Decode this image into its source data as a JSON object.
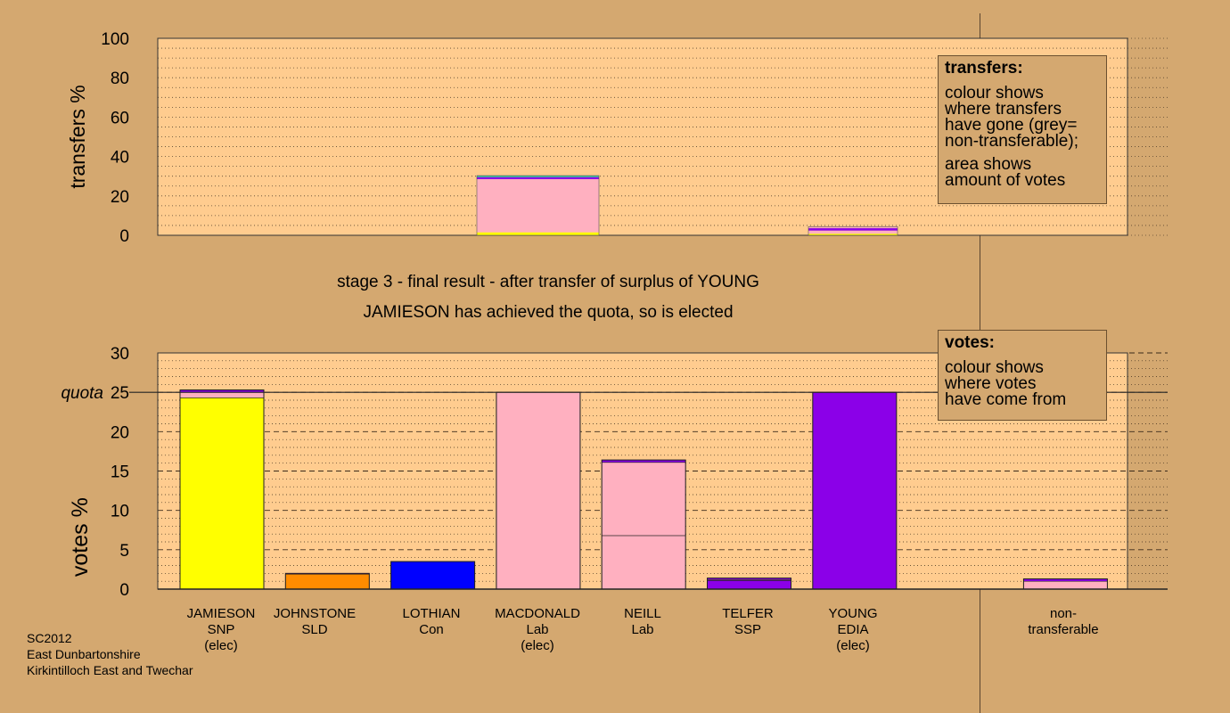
{
  "stage": {
    "line1": "stage 3 - final result - after transfer of surplus of YOUNG",
    "line2": "JAMIESON has achieved the quota, so is elected"
  },
  "colors": {
    "background": "#D4A870",
    "plot_bg": "#FFCC8F",
    "JAMIESON": "#FFFF00",
    "JOHNSTONE": "#FF8C00",
    "LOTHIAN": "#0000FF",
    "MACDONALD": "#FFB0C0",
    "NEILL": "#FFB0C0",
    "TELFER": "#8B00E8",
    "YOUNG": "#8B00E8",
    "non_transferable": "#FFB0C0"
  },
  "legend_transfers": {
    "title": "transfers:",
    "lines": [
      "colour shows",
      "where transfers",
      "have gone (grey=",
      "non-transferable);"
    ],
    "lines2": [
      "area shows",
      "amount of votes"
    ]
  },
  "legend_votes": {
    "title": "votes:",
    "lines": [
      "colour shows",
      "where votes",
      "have come from"
    ]
  },
  "candidates": [
    {
      "name": "JAMIESON",
      "party": "SNP",
      "status": "(elec)"
    },
    {
      "name": "JOHNSTONE",
      "party": "SLD",
      "status": ""
    },
    {
      "name": "LOTHIAN",
      "party": "Con",
      "status": ""
    },
    {
      "name": "MACDONALD",
      "party": "Lab",
      "status": "(elec)"
    },
    {
      "name": "NEILL",
      "party": "Lab",
      "status": ""
    },
    {
      "name": "TELFER",
      "party": "SSP",
      "status": ""
    },
    {
      "name": "YOUNG",
      "party": "EDIA",
      "status": "(elec)"
    },
    {
      "name": "non-",
      "party": "transferable",
      "status": ""
    }
  ],
  "footer": [
    "SC2012",
    "East Dunbartonshire",
    "Kirkintilloch East and Twechar"
  ],
  "chart_data": [
    {
      "type": "bar",
      "title": "",
      "ylabel": "transfers %",
      "ylim": [
        0,
        100
      ],
      "yticks": [
        0,
        20,
        40,
        60,
        80,
        100
      ],
      "bars": [
        {
          "column": 3,
          "segments": [
            {
              "color": "#FFFF00",
              "value": 1.5
            },
            {
              "color": "#FFB0C0",
              "value": 27
            },
            {
              "color": "#8B00E8",
              "value": 1
            },
            {
              "color": "#30C0A0",
              "value": 0.8
            }
          ]
        },
        {
          "column": 6,
          "segments": [
            {
              "color": "#FFFF00",
              "value": 0.8
            },
            {
              "color": "#FFB0C0",
              "value": 1.6
            },
            {
              "color": "#8B00E8",
              "value": 1.2
            },
            {
              "color": "#FFB0C0",
              "value": 0.8
            }
          ]
        }
      ]
    },
    {
      "type": "bar",
      "title": "",
      "ylabel": "votes %",
      "ylim": [
        0,
        30
      ],
      "yticks": [
        0,
        5,
        10,
        15,
        20,
        25,
        30
      ],
      "quota": 25,
      "quota_label": "quota",
      "categories": [
        "JAMIESON",
        "JOHNSTONE",
        "LOTHIAN",
        "MACDONALD",
        "NEILL",
        "TELFER",
        "YOUNG",
        "non-transferable"
      ],
      "bars": [
        {
          "column": 0,
          "segments": [
            {
              "color": "#FFFF00",
              "value": 24.3
            },
            {
              "color": "#FFB0C0",
              "value": 0.7
            },
            {
              "color": "#8B00E8",
              "value": 0.3
            }
          ]
        },
        {
          "column": 1,
          "segments": [
            {
              "color": "#FF8C00",
              "value": 1.9
            },
            {
              "color": "#8B00E8",
              "value": 0.1
            }
          ]
        },
        {
          "column": 2,
          "segments": [
            {
              "color": "#0000FF",
              "value": 3.5
            }
          ]
        },
        {
          "column": 3,
          "segments": [
            {
              "color": "#FFB0C0",
              "value": 25.0
            }
          ]
        },
        {
          "column": 4,
          "segments": [
            {
              "color": "#FFB0C0",
              "value": 6.8
            },
            {
              "color": "#FFB0C0",
              "value": 9.3
            },
            {
              "color": "#8B00E8",
              "value": 0.3
            }
          ]
        },
        {
          "column": 5,
          "segments": [
            {
              "color": "#8B00E8",
              "value": 1.1
            },
            {
              "color": "#FFB0C0",
              "value": 0.1
            },
            {
              "color": "#8B00E8",
              "value": 0.2
            }
          ]
        },
        {
          "column": 6,
          "segments": [
            {
              "color": "#8B00E8",
              "value": 25.0
            }
          ]
        },
        {
          "column": 8,
          "segments": [
            {
              "color": "#FFB0C0",
              "value": 1.0
            },
            {
              "color": "#8B00E8",
              "value": 0.3
            }
          ]
        }
      ]
    }
  ]
}
